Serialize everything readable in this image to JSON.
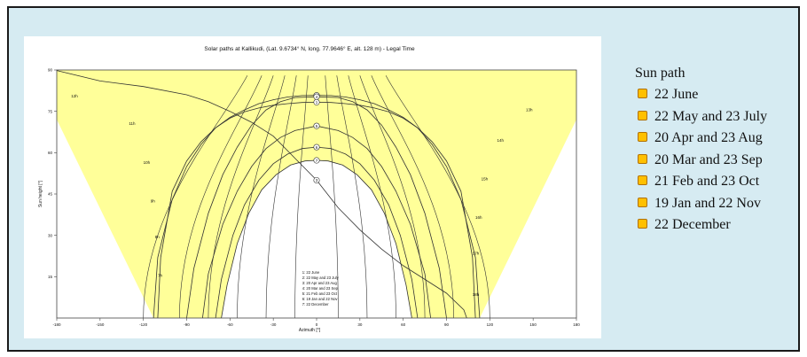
{
  "chart_data": {
    "type": "line",
    "title": "Solar paths at Kallikudi, (Lat. 9.6734° N, long. 77.9646° E, alt. 128 m) - Legal Time",
    "xlabel": "Azimuth [°]",
    "ylabel": "Sun height [°]",
    "xlim": [
      -180,
      180
    ],
    "ylim": [
      0,
      90
    ],
    "x_ticks": [
      "-180",
      "-150",
      "-120",
      "-90",
      "-60",
      "-30",
      "0",
      "30",
      "60",
      "90",
      "120",
      "150",
      "180"
    ],
    "y_ticks": [
      "15",
      "30",
      "45",
      "60",
      "75",
      "90"
    ],
    "grid": false,
    "fill_color": "#ffff99",
    "line_color": "#333333",
    "series": [
      {
        "name": "22 June",
        "label": "1",
        "x": [
          -113,
          -110,
          -100,
          -90,
          -80,
          -70,
          -60,
          -50,
          -40,
          -30,
          -20,
          -10,
          0,
          10,
          20,
          30,
          40,
          50,
          60,
          70,
          80,
          90,
          100,
          110,
          113
        ],
        "y": [
          0,
          22,
          43,
          55,
          63,
          69,
          72.5,
          74.8,
          76.2,
          77.2,
          77.8,
          78.2,
          78.3,
          78.2,
          77.8,
          77.2,
          76.2,
          74.8,
          72.5,
          69,
          63,
          55,
          43,
          22,
          0
        ]
      },
      {
        "name": "22 May and 23 July",
        "label": "2",
        "x": [
          -110,
          -108,
          -100,
          -90,
          -80,
          -70,
          -60,
          -50,
          -40,
          -30,
          -20,
          -10,
          0,
          10,
          20,
          30,
          40,
          50,
          60,
          70,
          80,
          90,
          100,
          108,
          110
        ],
        "y": [
          0,
          22,
          46,
          57,
          64,
          69,
          72.8,
          75.5,
          77.8,
          79.2,
          80.2,
          80.7,
          80.8,
          80.7,
          80.2,
          79.2,
          77.8,
          75.5,
          72.8,
          69,
          64,
          57,
          46,
          22,
          0
        ]
      },
      {
        "name": "20 Apr and 23 Aug",
        "label": "3",
        "x": [
          -180,
          -150,
          -120,
          -90,
          -75,
          -60,
          -45,
          -30,
          -15,
          0,
          15,
          30,
          45,
          60,
          75,
          90,
          102,
          104
        ],
        "y": [
          89.8,
          86,
          84,
          81,
          78.5,
          75,
          71,
          66,
          58,
          50,
          40,
          32,
          25,
          19,
          14,
          9,
          3,
          0
        ]
      },
      {
        "name": "20 Mar and 23 Sep",
        "label": "4",
        "x": [
          -90,
          -85,
          -75,
          -65,
          -55,
          -45,
          -35,
          -25,
          -15,
          0,
          15,
          25,
          35,
          45,
          55,
          65,
          75,
          85,
          90
        ],
        "y": [
          0,
          18,
          38,
          52,
          62,
          70,
          75.5,
          78.5,
          80,
          80.3,
          80,
          78.5,
          75.5,
          70,
          62,
          52,
          38,
          18,
          0
        ]
      },
      {
        "name": "21 Feb and 23 Oct",
        "label": "5",
        "x": [
          -79,
          -75,
          -65,
          -55,
          -45,
          -35,
          -25,
          -15,
          0,
          15,
          25,
          35,
          45,
          55,
          65,
          75,
          79
        ],
        "y": [
          0,
          16,
          34,
          46,
          55,
          61.5,
          65.5,
          68,
          69.7,
          68,
          65.5,
          61.5,
          55,
          46,
          34,
          16,
          0
        ]
      },
      {
        "name": "19 Jan and 22 Nov",
        "label": "6",
        "x": [
          -70,
          -66,
          -58,
          -50,
          -40,
          -30,
          -20,
          -10,
          0,
          10,
          20,
          30,
          40,
          50,
          58,
          66,
          70
        ],
        "y": [
          0,
          14,
          30,
          41,
          50,
          56,
          59.5,
          61.5,
          62,
          61.5,
          59.5,
          56,
          50,
          41,
          30,
          14,
          0
        ]
      },
      {
        "name": "22 December",
        "label": "7",
        "x": [
          -66,
          -62,
          -55,
          -47,
          -38,
          -28,
          -18,
          -8,
          0,
          8,
          18,
          28,
          38,
          47,
          55,
          62,
          66
        ],
        "y": [
          0,
          12,
          27,
          38,
          46.5,
          52,
          55.5,
          57,
          57.2,
          57,
          55.5,
          52,
          46.5,
          38,
          27,
          12,
          0
        ]
      }
    ],
    "hour_labels": [
      {
        "text": "12h",
        "x": -170,
        "y": 80
      },
      {
        "text": "11h",
        "x": -130,
        "y": 70
      },
      {
        "text": "10h",
        "x": -120,
        "y": 56
      },
      {
        "text": "9h",
        "x": -115,
        "y": 42
      },
      {
        "text": "8h",
        "x": -112,
        "y": 29
      },
      {
        "text": "7h",
        "x": -110,
        "y": 15
      },
      {
        "text": "13h",
        "x": 145,
        "y": 75
      },
      {
        "text": "14h",
        "x": 125,
        "y": 64
      },
      {
        "text": "15h",
        "x": 114,
        "y": 50
      },
      {
        "text": "16h",
        "x": 110,
        "y": 36
      },
      {
        "text": "17h",
        "x": 108,
        "y": 23
      },
      {
        "text": "18h",
        "x": 108,
        "y": 8
      }
    ],
    "inner_legend": [
      "1: 22 June",
      "2: 22 May and 23 July",
      "3: 20 Apr and 23 Aug",
      "4: 20 Mar and 23 Sep",
      "5: 21 Feb and 23 Oct",
      "6: 19 Jan and 22 Nov",
      "7: 22 December"
    ]
  },
  "legend": {
    "title": "Sun path",
    "items": [
      {
        "label": "22 June",
        "color": "#ffc000"
      },
      {
        "label": "22 May and 23 July",
        "color": "#ffc000"
      },
      {
        "label": "20 Apr and 23 Aug",
        "color": "#ffc000"
      },
      {
        "label": "20 Mar and 23 Sep",
        "color": "#ffc000"
      },
      {
        "label": "21 Feb and 23 Oct",
        "color": "#ffc000"
      },
      {
        "label": "19 Jan and 22 Nov",
        "color": "#ffc000"
      },
      {
        "label": "22 December",
        "color": "#ffc000"
      }
    ]
  }
}
